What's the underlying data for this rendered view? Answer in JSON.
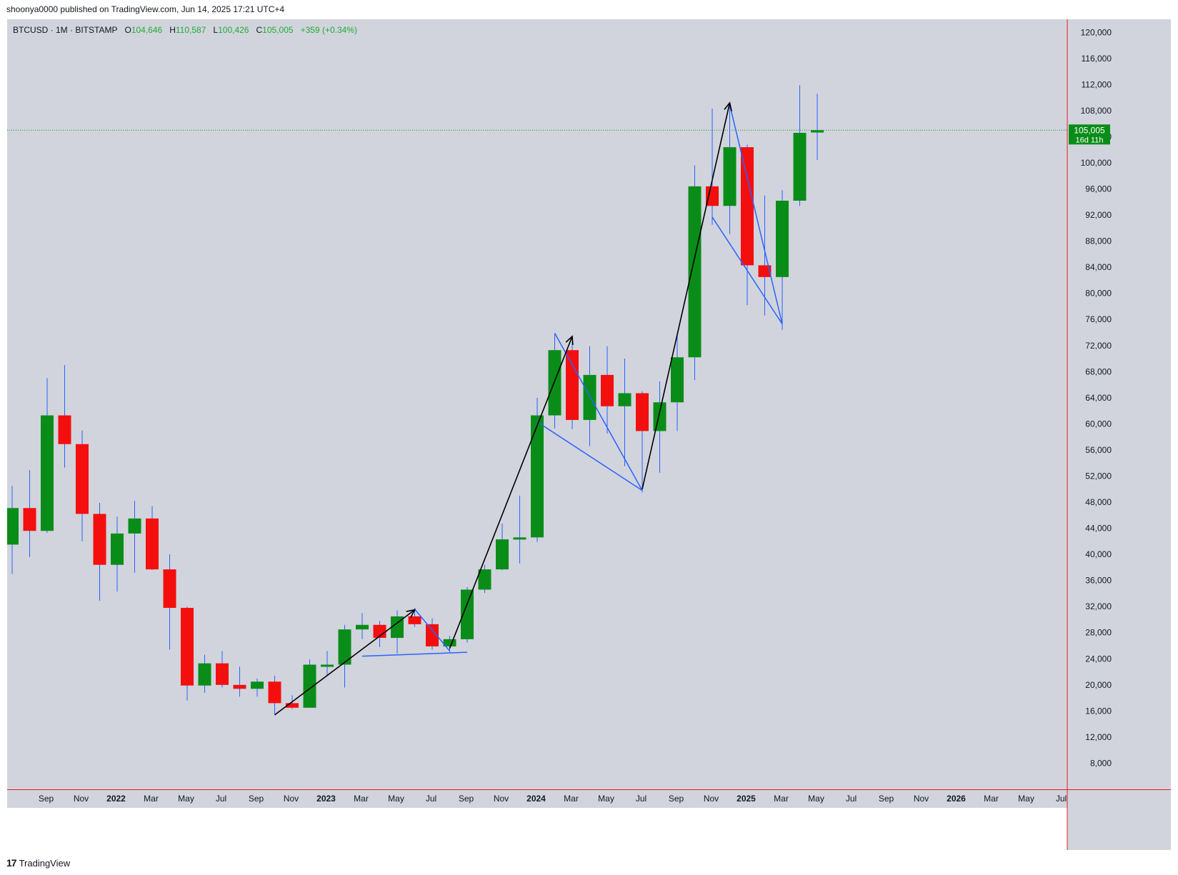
{
  "header": {
    "published_text": "shoonya0000 published on TradingView.com, Jun 14, 2025 17:21 UTC+4"
  },
  "legend": {
    "symbol": "BTCUSD · 1M · BITSTAMP",
    "open_label": "O",
    "open_value": "104,646",
    "high_label": "H",
    "high_value": "110,587",
    "low_label": "L",
    "low_value": "100,426",
    "close_label": "C",
    "close_value": "105,005",
    "change": "+359 (+0.34%)"
  },
  "price_badge": {
    "price": "105,005",
    "countdown": "16d 11h"
  },
  "footer": {
    "brand": "TradingView",
    "logo_glyph": "17"
  },
  "colors": {
    "background": "#d1d4dc",
    "up": "#0a8d18",
    "down": "#f40f0f",
    "wick": "#2962ff",
    "pattern_blue": "#2962ff",
    "pattern_black": "#000000",
    "price_line": "#0a8d18",
    "axis_red": "#e02020"
  },
  "chart_data": {
    "type": "candlestick",
    "symbol": "BTCUSD",
    "interval": "1M",
    "exchange": "BITSTAMP",
    "ylim": [
      4000,
      122000
    ],
    "y_ticks": [
      "8,000",
      "12,000",
      "16,000",
      "20,000",
      "24,000",
      "28,000",
      "32,000",
      "36,000",
      "40,000",
      "44,000",
      "48,000",
      "52,000",
      "56,000",
      "60,000",
      "64,000",
      "68,000",
      "72,000",
      "76,000",
      "80,000",
      "84,000",
      "88,000",
      "92,000",
      "96,000",
      "100,000",
      "104,000",
      "108,000",
      "112,000",
      "116,000",
      "120,000"
    ],
    "x_ticks": [
      {
        "label": "Sep",
        "month": "2021-09",
        "bold": false
      },
      {
        "label": "Nov",
        "month": "2021-11",
        "bold": false
      },
      {
        "label": "2022",
        "month": "2022-01",
        "bold": true
      },
      {
        "label": "Mar",
        "month": "2022-03",
        "bold": false
      },
      {
        "label": "May",
        "month": "2022-05",
        "bold": false
      },
      {
        "label": "Jul",
        "month": "2022-07",
        "bold": false
      },
      {
        "label": "Sep",
        "month": "2022-09",
        "bold": false
      },
      {
        "label": "Nov",
        "month": "2022-11",
        "bold": false
      },
      {
        "label": "2023",
        "month": "2023-01",
        "bold": true
      },
      {
        "label": "Mar",
        "month": "2023-03",
        "bold": false
      },
      {
        "label": "May",
        "month": "2023-05",
        "bold": false
      },
      {
        "label": "Jul",
        "month": "2023-07",
        "bold": false
      },
      {
        "label": "Sep",
        "month": "2023-09",
        "bold": false
      },
      {
        "label": "Nov",
        "month": "2023-11",
        "bold": false
      },
      {
        "label": "2024",
        "month": "2024-01",
        "bold": true
      },
      {
        "label": "Mar",
        "month": "2024-03",
        "bold": false
      },
      {
        "label": "May",
        "month": "2024-05",
        "bold": false
      },
      {
        "label": "Jul",
        "month": "2024-07",
        "bold": false
      },
      {
        "label": "Sep",
        "month": "2024-09",
        "bold": false
      },
      {
        "label": "Nov",
        "month": "2024-11",
        "bold": false
      },
      {
        "label": "2025",
        "month": "2025-01",
        "bold": true
      },
      {
        "label": "Mar",
        "month": "2025-03",
        "bold": false
      },
      {
        "label": "May",
        "month": "2025-05",
        "bold": false
      },
      {
        "label": "Jul",
        "month": "2025-07",
        "bold": false
      },
      {
        "label": "Sep",
        "month": "2025-09",
        "bold": false
      },
      {
        "label": "Nov",
        "month": "2025-11",
        "bold": false
      },
      {
        "label": "2026",
        "month": "2026-01",
        "bold": true
      },
      {
        "label": "Mar",
        "month": "2026-03",
        "bold": false
      },
      {
        "label": "May",
        "month": "2026-05",
        "bold": false
      },
      {
        "label": "Jul",
        "month": "2026-07",
        "bold": false
      }
    ],
    "candles": [
      {
        "month": "2021-08",
        "open": 41500,
        "high": 50500,
        "low": 37000,
        "close": 47100
      },
      {
        "month": "2021-09",
        "open": 47100,
        "high": 52900,
        "low": 39600,
        "close": 43600
      },
      {
        "month": "2021-10",
        "open": 43600,
        "high": 67000,
        "low": 43300,
        "close": 61300
      },
      {
        "month": "2021-11",
        "open": 61300,
        "high": 69000,
        "low": 53300,
        "close": 56900
      },
      {
        "month": "2021-12",
        "open": 56900,
        "high": 59000,
        "low": 42000,
        "close": 46200
      },
      {
        "month": "2022-01",
        "open": 46200,
        "high": 47900,
        "low": 32900,
        "close": 38400
      },
      {
        "month": "2022-02",
        "open": 38400,
        "high": 45800,
        "low": 34300,
        "close": 43200
      },
      {
        "month": "2022-03",
        "open": 43200,
        "high": 48200,
        "low": 37200,
        "close": 45500
      },
      {
        "month": "2022-04",
        "open": 45500,
        "high": 47400,
        "low": 37600,
        "close": 37700
      },
      {
        "month": "2022-05",
        "open": 37700,
        "high": 40000,
        "low": 25400,
        "close": 31800
      },
      {
        "month": "2022-06",
        "open": 31800,
        "high": 32000,
        "low": 17600,
        "close": 19900
      },
      {
        "month": "2022-07",
        "open": 19900,
        "high": 24600,
        "low": 18800,
        "close": 23300
      },
      {
        "month": "2022-08",
        "open": 23300,
        "high": 25200,
        "low": 19600,
        "close": 20000
      },
      {
        "month": "2022-09",
        "open": 20000,
        "high": 22800,
        "low": 18200,
        "close": 19400
      },
      {
        "month": "2022-10",
        "open": 19400,
        "high": 21000,
        "low": 18200,
        "close": 20500
      },
      {
        "month": "2022-11",
        "open": 20500,
        "high": 21400,
        "low": 15500,
        "close": 17200
      },
      {
        "month": "2022-12",
        "open": 17200,
        "high": 18400,
        "low": 16300,
        "close": 16500
      },
      {
        "month": "2023-01",
        "open": 16500,
        "high": 23900,
        "low": 16500,
        "close": 23100
      },
      {
        "month": "2023-02",
        "open": 23100,
        "high": 25200,
        "low": 21400,
        "close": 23100
      },
      {
        "month": "2023-03",
        "open": 23100,
        "high": 29200,
        "low": 19600,
        "close": 28500
      },
      {
        "month": "2023-04",
        "open": 28500,
        "high": 31000,
        "low": 27000,
        "close": 29200
      },
      {
        "month": "2023-05",
        "open": 29200,
        "high": 29800,
        "low": 25800,
        "close": 27200
      },
      {
        "month": "2023-06",
        "open": 27200,
        "high": 31400,
        "low": 24800,
        "close": 30500
      },
      {
        "month": "2023-07",
        "open": 30500,
        "high": 31800,
        "low": 28900,
        "close": 29300
      },
      {
        "month": "2023-08",
        "open": 29300,
        "high": 30200,
        "low": 25400,
        "close": 25900
      },
      {
        "month": "2023-09",
        "open": 25900,
        "high": 27500,
        "low": 24900,
        "close": 27000
      },
      {
        "month": "2023-10",
        "open": 27000,
        "high": 35000,
        "low": 26500,
        "close": 34600
      },
      {
        "month": "2023-11",
        "open": 34600,
        "high": 38400,
        "low": 34100,
        "close": 37700
      },
      {
        "month": "2023-12",
        "open": 37700,
        "high": 44700,
        "low": 37600,
        "close": 42300
      },
      {
        "month": "2024-01",
        "open": 42300,
        "high": 49000,
        "low": 38600,
        "close": 42600
      },
      {
        "month": "2024-02",
        "open": 42600,
        "high": 64000,
        "low": 41900,
        "close": 61300
      },
      {
        "month": "2024-03",
        "open": 61300,
        "high": 73800,
        "low": 59300,
        "close": 71300
      },
      {
        "month": "2024-04",
        "open": 71300,
        "high": 72800,
        "low": 59200,
        "close": 60600
      },
      {
        "month": "2024-05",
        "open": 60600,
        "high": 71900,
        "low": 56600,
        "close": 67500
      },
      {
        "month": "2024-06",
        "open": 67500,
        "high": 71900,
        "low": 58500,
        "close": 62700
      },
      {
        "month": "2024-07",
        "open": 62700,
        "high": 70000,
        "low": 53500,
        "close": 64700
      },
      {
        "month": "2024-08",
        "open": 64700,
        "high": 65000,
        "low": 49500,
        "close": 58900
      },
      {
        "month": "2024-09",
        "open": 58900,
        "high": 66500,
        "low": 52500,
        "close": 63300
      },
      {
        "month": "2024-10",
        "open": 63300,
        "high": 73600,
        "low": 58900,
        "close": 70200
      },
      {
        "month": "2024-11",
        "open": 70200,
        "high": 99600,
        "low": 66700,
        "close": 96400
      },
      {
        "month": "2024-12",
        "open": 96400,
        "high": 108300,
        "low": 90500,
        "close": 93400
      },
      {
        "month": "2025-01",
        "open": 93400,
        "high": 109300,
        "low": 89100,
        "close": 102400
      },
      {
        "month": "2025-02",
        "open": 102400,
        "high": 102800,
        "low": 78200,
        "close": 84300
      },
      {
        "month": "2025-03",
        "open": 84300,
        "high": 95000,
        "low": 76600,
        "close": 82500
      },
      {
        "month": "2025-04",
        "open": 82500,
        "high": 95800,
        "low": 74400,
        "close": 94200
      },
      {
        "month": "2025-05",
        "open": 94200,
        "high": 111900,
        "low": 93400,
        "close": 104600
      },
      {
        "month": "2025-06",
        "open": 104646,
        "high": 110587,
        "low": 100426,
        "close": 105005
      }
    ],
    "current_price": 105005,
    "annotations": {
      "blue_lines": [
        [
          [
            "2023-04",
            24400
          ],
          [
            "2023-10",
            25000
          ]
        ],
        [
          "polyline",
          [
            "2023-07",
            31600
          ],
          [
            "2023-09",
            25200
          ]
        ],
        [
          "polyline",
          [
            "2024-03",
            73900
          ],
          [
            "2024-08",
            49800
          ],
          [
            "2024-02",
            60300
          ]
        ],
        [
          "polyline",
          [
            "2025-01",
            108900
          ],
          [
            "2025-04",
            75300
          ],
          [
            "2024-12",
            91700
          ]
        ]
      ],
      "black_arrows": [
        [
          [
            "2022-11",
            15400
          ],
          [
            "2023-07",
            31500
          ]
        ],
        [
          [
            "2023-09",
            25600
          ],
          [
            "2024-04",
            73400
          ]
        ],
        [
          [
            "2024-08",
            50000
          ],
          [
            "2025-01",
            109200
          ]
        ]
      ]
    }
  }
}
